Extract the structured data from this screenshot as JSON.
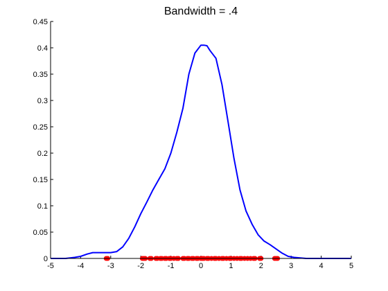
{
  "chart_data": {
    "type": "line",
    "title": "Bandwidth = .4",
    "xlabel": "",
    "ylabel": "",
    "xlim": [
      -5,
      5
    ],
    "ylim": [
      0,
      0.45
    ],
    "x_ticks": [
      "-5",
      "-4",
      "-3",
      "-2",
      "-1",
      "0",
      "1",
      "2",
      "3",
      "4",
      "5"
    ],
    "y_ticks": [
      "0",
      "0.05",
      "0.1",
      "0.15",
      "0.2",
      "0.25",
      "0.3",
      "0.35",
      "0.4",
      "0.45"
    ],
    "grid": false,
    "series": [
      {
        "kind": "line",
        "color": "#0000ff",
        "x": [
          -5.0,
          -4.5,
          -4.2,
          -4.0,
          -3.8,
          -3.6,
          -3.4,
          -3.2,
          -3.0,
          -2.8,
          -2.6,
          -2.4,
          -2.2,
          -2.0,
          -1.8,
          -1.6,
          -1.4,
          -1.2,
          -1.0,
          -0.8,
          -0.6,
          -0.4,
          -0.2,
          0.0,
          0.1,
          0.2,
          0.3,
          0.5,
          0.7,
          0.9,
          1.1,
          1.3,
          1.5,
          1.7,
          1.9,
          2.1,
          2.3,
          2.5,
          2.7,
          2.9,
          3.1,
          3.3,
          3.5,
          3.7,
          4.0,
          4.5,
          5.0
        ],
        "y": [
          0.0,
          0.0,
          0.002,
          0.004,
          0.008,
          0.011,
          0.011,
          0.011,
          0.011,
          0.013,
          0.022,
          0.038,
          0.06,
          0.085,
          0.107,
          0.13,
          0.15,
          0.17,
          0.2,
          0.24,
          0.285,
          0.35,
          0.39,
          0.405,
          0.405,
          0.404,
          0.395,
          0.38,
          0.33,
          0.26,
          0.19,
          0.13,
          0.09,
          0.065,
          0.045,
          0.033,
          0.026,
          0.018,
          0.01,
          0.004,
          0.002,
          0.001,
          0.0,
          0.0,
          0.0,
          0.0,
          0.0
        ]
      },
      {
        "kind": "scatter",
        "color": "#ff0000",
        "x": [
          -3.15,
          -3.1,
          -1.95,
          -1.9,
          -1.85,
          -1.7,
          -1.65,
          -1.5,
          -1.45,
          -1.35,
          -1.3,
          -1.2,
          -1.15,
          -1.05,
          -1.0,
          -0.9,
          -0.8,
          -0.75,
          -0.6,
          -0.55,
          -0.45,
          -0.4,
          -0.3,
          -0.25,
          -0.15,
          -0.1,
          0.0,
          0.05,
          0.1,
          0.2,
          0.25,
          0.35,
          0.45,
          0.5,
          0.6,
          0.7,
          0.75,
          0.85,
          0.95,
          1.0,
          1.1,
          1.2,
          1.3,
          1.35,
          1.45,
          1.55,
          1.65,
          1.75,
          1.8,
          1.95,
          2.0,
          2.45,
          2.5,
          2.55
        ],
        "y": [
          0,
          0,
          0,
          0,
          0,
          0,
          0,
          0,
          0,
          0,
          0,
          0,
          0,
          0,
          0,
          0,
          0,
          0,
          0,
          0,
          0,
          0,
          0,
          0,
          0,
          0,
          0,
          0,
          0,
          0,
          0,
          0,
          0,
          0,
          0,
          0,
          0,
          0,
          0,
          0,
          0,
          0,
          0,
          0,
          0,
          0,
          0,
          0,
          0,
          0,
          0,
          0,
          0,
          0
        ]
      }
    ]
  }
}
